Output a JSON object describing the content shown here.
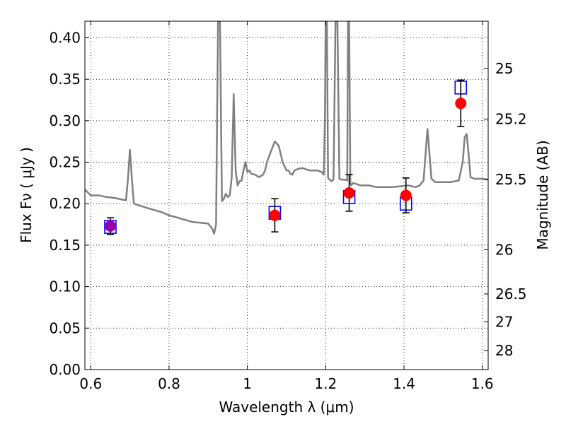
{
  "chart_data": {
    "type": "scatter",
    "xlabel": "Wavelength  λ (μm)",
    "ylabel": "Flux  Fν  ( μJy )",
    "y2label": "Magnitude (AB)",
    "xlim": [
      0.585,
      1.615
    ],
    "ylim": [
      0.0,
      0.42
    ],
    "grid": true,
    "grid_style": "dotted",
    "x_ticks": [
      0.6,
      0.8,
      1.0,
      1.2,
      1.4,
      1.6
    ],
    "x_tick_labels": [
      "0.6",
      "0.8",
      "1",
      "1.2",
      "1.4",
      "1.6"
    ],
    "y_ticks": [
      0.0,
      0.05,
      0.1,
      0.15,
      0.2,
      0.25,
      0.3,
      0.35,
      0.4
    ],
    "y_tick_labels": [
      "0.00",
      "0.05",
      "0.10",
      "0.15",
      "0.20",
      "0.25",
      "0.30",
      "0.35",
      "0.40"
    ],
    "mag_ticks": [
      25,
      25.2,
      25.5,
      26,
      26.5,
      27,
      28
    ],
    "mag_tick_labels": [
      "25",
      "25.2",
      "25.5",
      "26",
      "26.5",
      "27",
      "28"
    ],
    "series": [
      {
        "kind": "line",
        "color": "#808080",
        "x": [
          0.585,
          0.6,
          0.62,
          0.64,
          0.66,
          0.68,
          0.69,
          0.695,
          0.7,
          0.705,
          0.71,
          0.73,
          0.75,
          0.78,
          0.8,
          0.83,
          0.86,
          0.88,
          0.9,
          0.91,
          0.915,
          0.92,
          0.925,
          0.93,
          0.935,
          0.94,
          0.945,
          0.95,
          0.955,
          0.96,
          0.965,
          0.97,
          0.975,
          0.98,
          0.985,
          0.99,
          0.995,
          1.0,
          1.005,
          1.01,
          1.02,
          1.03,
          1.04,
          1.045,
          1.05,
          1.06,
          1.07,
          1.08,
          1.09,
          1.095,
          1.1,
          1.105,
          1.11,
          1.115,
          1.12,
          1.13,
          1.14,
          1.16,
          1.18,
          1.19,
          1.195,
          1.198,
          1.2,
          1.203,
          1.206,
          1.21,
          1.215,
          1.22,
          1.225,
          1.23,
          1.235,
          1.24,
          1.25,
          1.255,
          1.257,
          1.26,
          1.263,
          1.265,
          1.27,
          1.29,
          1.31,
          1.33,
          1.35,
          1.37,
          1.39,
          1.41,
          1.43,
          1.44,
          1.45,
          1.455,
          1.46,
          1.465,
          1.47,
          1.48,
          1.5,
          1.52,
          1.54,
          1.55,
          1.555,
          1.56,
          1.565,
          1.57,
          1.58,
          1.6,
          1.615
        ],
        "y": [
          0.217,
          0.21,
          0.21,
          0.208,
          0.207,
          0.205,
          0.204,
          0.23,
          0.265,
          0.23,
          0.2,
          0.197,
          0.194,
          0.19,
          0.186,
          0.182,
          0.178,
          0.177,
          0.176,
          0.17,
          0.164,
          0.175,
          0.42,
          0.42,
          0.203,
          0.206,
          0.212,
          0.208,
          0.21,
          0.232,
          0.332,
          0.24,
          0.222,
          0.227,
          0.228,
          0.24,
          0.25,
          0.238,
          0.24,
          0.236,
          0.235,
          0.232,
          0.235,
          0.24,
          0.25,
          0.263,
          0.275,
          0.27,
          0.25,
          0.245,
          0.24,
          0.24,
          0.236,
          0.235,
          0.24,
          0.242,
          0.243,
          0.24,
          0.24,
          0.238,
          0.235,
          0.3,
          0.42,
          0.42,
          0.231,
          0.229,
          0.227,
          0.229,
          0.42,
          0.42,
          0.23,
          0.229,
          0.229,
          0.228,
          0.42,
          0.42,
          0.225,
          0.222,
          0.225,
          0.222,
          0.222,
          0.22,
          0.22,
          0.22,
          0.221,
          0.222,
          0.22,
          0.222,
          0.228,
          0.26,
          0.29,
          0.26,
          0.23,
          0.226,
          0.226,
          0.226,
          0.228,
          0.25,
          0.28,
          0.284,
          0.26,
          0.232,
          0.23,
          0.23,
          0.229
        ]
      },
      {
        "kind": "model-squares",
        "color": "#0000ff",
        "points": [
          [
            0.65,
            0.172
          ],
          [
            1.07,
            0.189
          ],
          [
            1.26,
            0.208
          ],
          [
            1.405,
            0.2
          ],
          [
            1.545,
            0.34
          ]
        ]
      },
      {
        "kind": "observed-errorbars",
        "color": "#ff0000",
        "points": [
          {
            "x": 0.65,
            "y": 0.173,
            "err": 0.01,
            "color": "#9900aa"
          },
          {
            "x": 1.07,
            "y": 0.186,
            "err": 0.02,
            "color": "#ff0000"
          },
          {
            "x": 1.26,
            "y": 0.213,
            "err": 0.022,
            "color": "#ff0000"
          },
          {
            "x": 1.405,
            "y": 0.21,
            "err": 0.021,
            "color": "#ff0000"
          },
          {
            "x": 1.545,
            "y": 0.321,
            "err": 0.028,
            "color": "#ff0000"
          }
        ]
      }
    ]
  }
}
